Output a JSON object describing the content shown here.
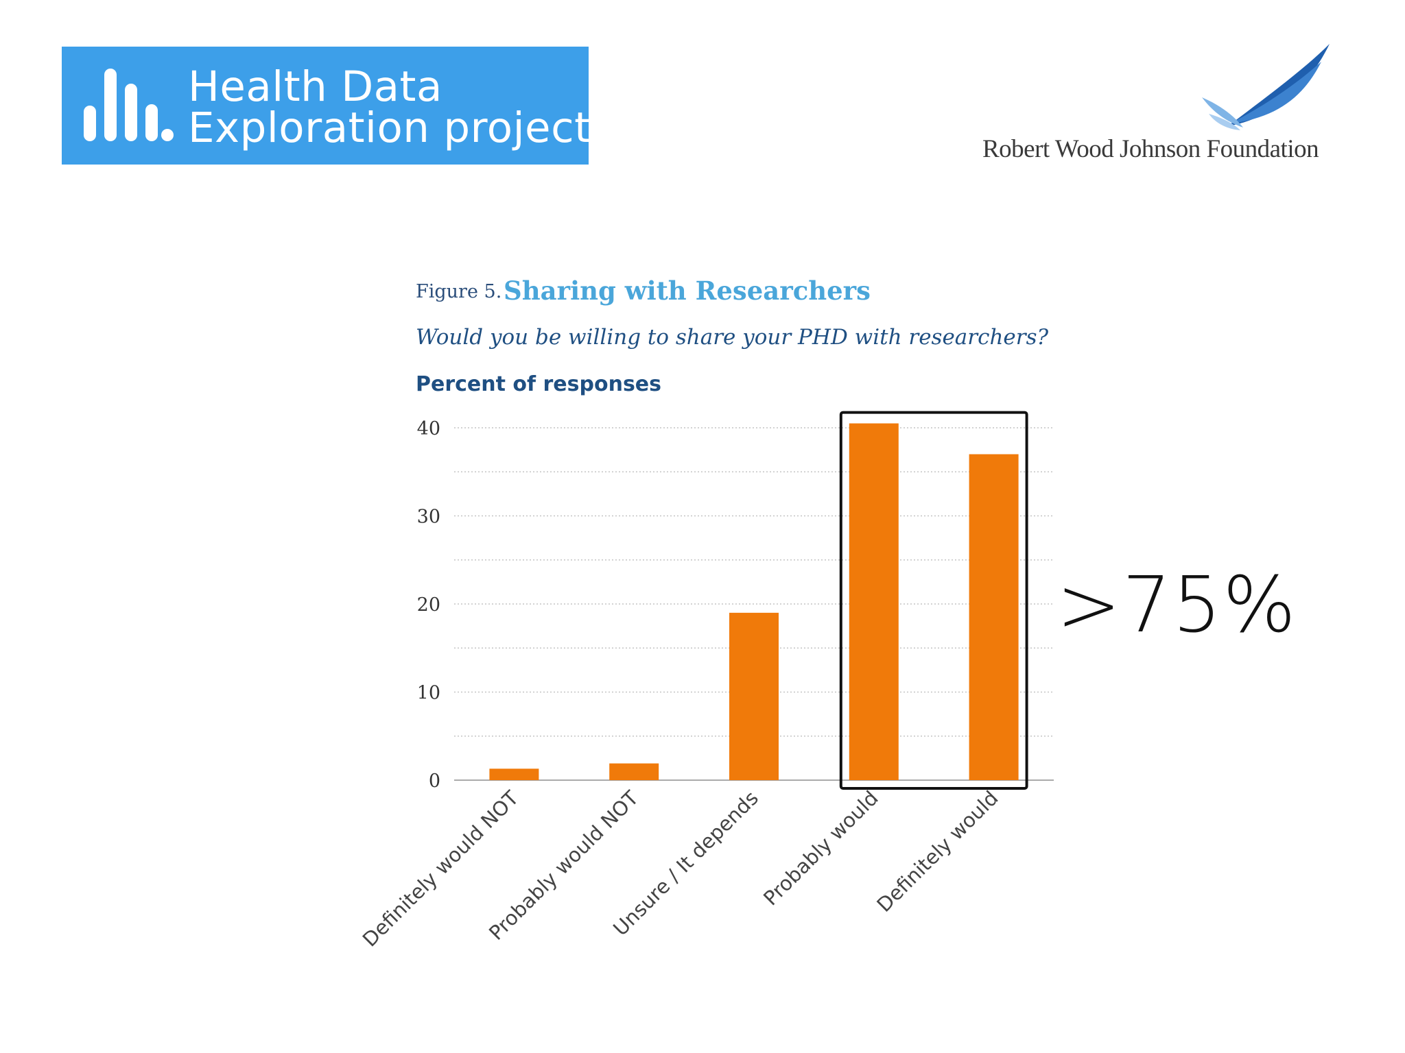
{
  "logos": {
    "left_line1": "Health Data",
    "left_line2": "Exploration project",
    "right_name": "Robert Wood Johnson Foundation"
  },
  "figure": {
    "label": "Figure 5.",
    "title": "Sharing with Researchers",
    "question": "Would you be willing to share your PHD with researchers?",
    "y_label": "Percent of responses"
  },
  "callout": ">75%",
  "chart_data": {
    "type": "bar",
    "title": "Sharing with Researchers",
    "subtitle": "Would you be willing to share your PHD with researchers?",
    "ylabel": "Percent of responses",
    "xlabel": "",
    "categories": [
      "Definitely would NOT",
      "Probably would NOT",
      "Unsure / It depends",
      "Probably would",
      "Definitely would"
    ],
    "values": [
      1.3,
      1.9,
      19,
      40.5,
      37
    ],
    "ylim": [
      0,
      40
    ],
    "yticks": [
      0,
      10,
      20,
      30,
      40
    ],
    "grid": true,
    "bar_color": "#f07a0a",
    "highlight": {
      "categories": [
        "Probably would",
        "Definitely would"
      ],
      "label": ">75%"
    }
  }
}
